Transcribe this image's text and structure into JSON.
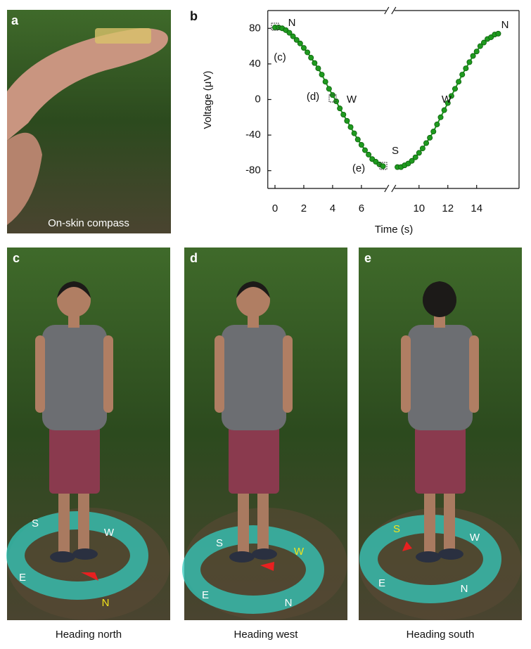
{
  "panel_a": {
    "label": "a",
    "text": "On-skin compass"
  },
  "chart_data": {
    "type": "line",
    "label": "b",
    "x": [
      0,
      0.25,
      0.5,
      0.75,
      1,
      1.25,
      1.5,
      1.75,
      2,
      2.25,
      2.5,
      2.75,
      3,
      3.25,
      3.5,
      3.75,
      4,
      4.25,
      4.5,
      4.75,
      5,
      5.25,
      5.5,
      5.75,
      6,
      6.25,
      6.5,
      6.75,
      7,
      7.25,
      7.5,
      8,
      8.5,
      8.75,
      9,
      9.25,
      9.5,
      9.75,
      10,
      10.25,
      10.5,
      10.75,
      11,
      11.25,
      11.5,
      11.75,
      12,
      12.25,
      12.5,
      12.75,
      13,
      13.25,
      13.5,
      13.75,
      14,
      14.25,
      14.5,
      14.75,
      15,
      15.25,
      15.5
    ],
    "values": [
      81,
      81,
      80,
      78,
      75,
      71,
      67,
      63,
      58,
      53,
      47,
      41,
      35,
      28,
      20,
      12,
      5,
      -2,
      -10,
      -17,
      -24,
      -31,
      -38,
      -45,
      -51,
      -57,
      -62,
      -67,
      -70,
      -73,
      -75,
      null,
      -76,
      -76,
      -74,
      -72,
      -69,
      -65,
      -60,
      -55,
      -49,
      -43,
      -36,
      -28,
      -20,
      -12,
      -4,
      4,
      12,
      20,
      28,
      35,
      42,
      49,
      54,
      60,
      64,
      68,
      70,
      73,
      74
    ],
    "color": "#1f9a1f",
    "markers": true,
    "x_break": 8,
    "xlim": [
      -0.5,
      16.7
    ],
    "ylim": [
      -100,
      100
    ],
    "xticks": [
      0,
      2,
      4,
      6,
      10,
      12,
      14
    ],
    "yticks": [
      -80,
      -40,
      0,
      40,
      80
    ],
    "xlabel": "Time (s)",
    "ylabel": "Voltage (μV)",
    "annotations": [
      "N",
      "(c)",
      "(d)",
      "W",
      "S",
      "(e)",
      "W",
      "N"
    ]
  },
  "photos": [
    {
      "label": "c",
      "compass": [
        "S",
        "W",
        "E",
        "N"
      ],
      "highlight": 3,
      "caption": "Heading north"
    },
    {
      "label": "d",
      "compass": [
        "S",
        "W",
        "E",
        "N"
      ],
      "highlight": 1,
      "caption": "Heading west"
    },
    {
      "label": "e",
      "compass": [
        "S",
        "W",
        "E",
        "N"
      ],
      "highlight": 0,
      "caption": "Heading south"
    }
  ],
  "highlight_color": "#f2e41c"
}
